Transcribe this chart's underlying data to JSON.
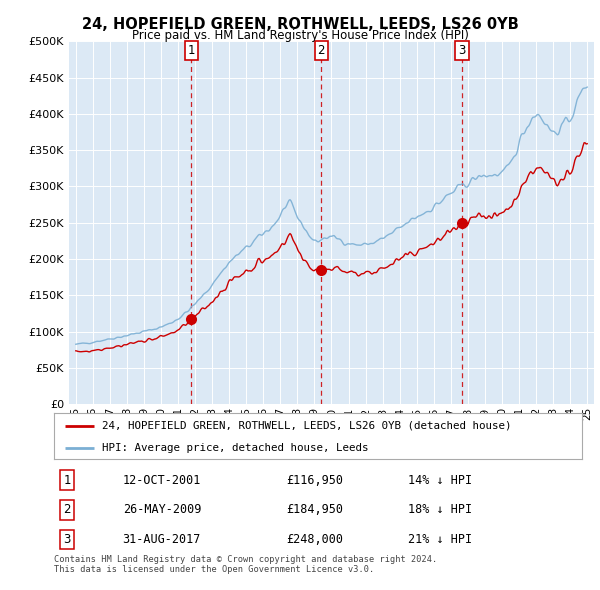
{
  "title1": "24, HOPEFIELD GREEN, ROTHWELL, LEEDS, LS26 0YB",
  "title2": "Price paid vs. HM Land Registry's House Price Index (HPI)",
  "ylabel_ticks": [
    "£0",
    "£50K",
    "£100K",
    "£150K",
    "£200K",
    "£250K",
    "£300K",
    "£350K",
    "£400K",
    "£450K",
    "£500K"
  ],
  "ytick_vals": [
    0,
    50000,
    100000,
    150000,
    200000,
    250000,
    300000,
    350000,
    400000,
    450000,
    500000
  ],
  "xlim": [
    1994.6,
    2025.4
  ],
  "ylim": [
    0,
    500000
  ],
  "bg_color": "#dce9f5",
  "legend_label_red": "24, HOPEFIELD GREEN, ROTHWELL, LEEDS, LS26 0YB (detached house)",
  "legend_label_blue": "HPI: Average price, detached house, Leeds",
  "transactions": [
    {
      "num": 1,
      "date": "12-OCT-2001",
      "price": 116950,
      "pct": "14%",
      "x": 2001.78
    },
    {
      "num": 2,
      "date": "26-MAY-2009",
      "price": 184950,
      "pct": "18%",
      "x": 2009.4
    },
    {
      "num": 3,
      "date": "31-AUG-2017",
      "price": 248000,
      "pct": "21%",
      "x": 2017.66
    }
  ],
  "footer": "Contains HM Land Registry data © Crown copyright and database right 2024.\nThis data is licensed under the Open Government Licence v3.0.",
  "hpi_color": "#7bafd4",
  "price_color": "#cc0000",
  "vline_color": "#cc0000",
  "xtick_years": [
    1995,
    1996,
    1997,
    1998,
    1999,
    2000,
    2001,
    2002,
    2003,
    2004,
    2005,
    2006,
    2007,
    2008,
    2009,
    2010,
    2011,
    2012,
    2013,
    2014,
    2015,
    2016,
    2017,
    2018,
    2019,
    2020,
    2021,
    2022,
    2023,
    2024,
    2025
  ]
}
